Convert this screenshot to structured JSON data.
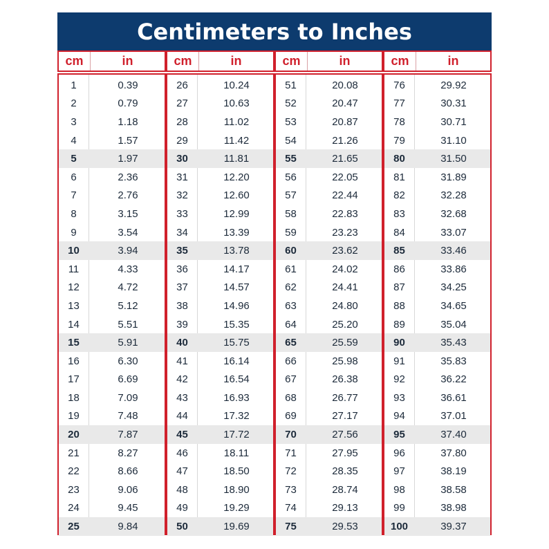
{
  "title": "Centimeters to Inches",
  "headers": {
    "cm": "cm",
    "in": "in"
  },
  "columns": [
    [
      [
        "1",
        "0.39"
      ],
      [
        "2",
        "0.79"
      ],
      [
        "3",
        "1.18"
      ],
      [
        "4",
        "1.57"
      ],
      [
        "5",
        "1.97"
      ],
      [
        "6",
        "2.36"
      ],
      [
        "7",
        "2.76"
      ],
      [
        "8",
        "3.15"
      ],
      [
        "9",
        "3.54"
      ],
      [
        "10",
        "3.94"
      ],
      [
        "11",
        "4.33"
      ],
      [
        "12",
        "4.72"
      ],
      [
        "13",
        "5.12"
      ],
      [
        "14",
        "5.51"
      ],
      [
        "15",
        "5.91"
      ],
      [
        "16",
        "6.30"
      ],
      [
        "17",
        "6.69"
      ],
      [
        "18",
        "7.09"
      ],
      [
        "19",
        "7.48"
      ],
      [
        "20",
        "7.87"
      ],
      [
        "21",
        "8.27"
      ],
      [
        "22",
        "8.66"
      ],
      [
        "23",
        "9.06"
      ],
      [
        "24",
        "9.45"
      ],
      [
        "25",
        "9.84"
      ]
    ],
    [
      [
        "26",
        "10.24"
      ],
      [
        "27",
        "10.63"
      ],
      [
        "28",
        "11.02"
      ],
      [
        "29",
        "11.42"
      ],
      [
        "30",
        "11.81"
      ],
      [
        "31",
        "12.20"
      ],
      [
        "32",
        "12.60"
      ],
      [
        "33",
        "12.99"
      ],
      [
        "34",
        "13.39"
      ],
      [
        "35",
        "13.78"
      ],
      [
        "36",
        "14.17"
      ],
      [
        "37",
        "14.57"
      ],
      [
        "38",
        "14.96"
      ],
      [
        "39",
        "15.35"
      ],
      [
        "40",
        "15.75"
      ],
      [
        "41",
        "16.14"
      ],
      [
        "42",
        "16.54"
      ],
      [
        "43",
        "16.93"
      ],
      [
        "44",
        "17.32"
      ],
      [
        "45",
        "17.72"
      ],
      [
        "46",
        "18.11"
      ],
      [
        "47",
        "18.50"
      ],
      [
        "48",
        "18.90"
      ],
      [
        "49",
        "19.29"
      ],
      [
        "50",
        "19.69"
      ]
    ],
    [
      [
        "51",
        "20.08"
      ],
      [
        "52",
        "20.47"
      ],
      [
        "53",
        "20.87"
      ],
      [
        "54",
        "21.26"
      ],
      [
        "55",
        "21.65"
      ],
      [
        "56",
        "22.05"
      ],
      [
        "57",
        "22.44"
      ],
      [
        "58",
        "22.83"
      ],
      [
        "59",
        "23.23"
      ],
      [
        "60",
        "23.62"
      ],
      [
        "61",
        "24.02"
      ],
      [
        "62",
        "24.41"
      ],
      [
        "63",
        "24.80"
      ],
      [
        "64",
        "25.20"
      ],
      [
        "65",
        "25.59"
      ],
      [
        "66",
        "25.98"
      ],
      [
        "67",
        "26.38"
      ],
      [
        "68",
        "26.77"
      ],
      [
        "69",
        "27.17"
      ],
      [
        "70",
        "27.56"
      ],
      [
        "71",
        "27.95"
      ],
      [
        "72",
        "28.35"
      ],
      [
        "73",
        "28.74"
      ],
      [
        "74",
        "29.13"
      ],
      [
        "75",
        "29.53"
      ]
    ],
    [
      [
        "76",
        "29.92"
      ],
      [
        "77",
        "30.31"
      ],
      [
        "78",
        "30.71"
      ],
      [
        "79",
        "31.10"
      ],
      [
        "80",
        "31.50"
      ],
      [
        "81",
        "31.89"
      ],
      [
        "82",
        "32.28"
      ],
      [
        "83",
        "32.68"
      ],
      [
        "84",
        "33.07"
      ],
      [
        "85",
        "33.46"
      ],
      [
        "86",
        "33.86"
      ],
      [
        "87",
        "34.25"
      ],
      [
        "88",
        "34.65"
      ],
      [
        "89",
        "35.04"
      ],
      [
        "90",
        "35.43"
      ],
      [
        "91",
        "35.83"
      ],
      [
        "92",
        "36.22"
      ],
      [
        "93",
        "36.61"
      ],
      [
        "94",
        "37.01"
      ],
      [
        "95",
        "37.40"
      ],
      [
        "96",
        "37.80"
      ],
      [
        "97",
        "38.19"
      ],
      [
        "98",
        "38.58"
      ],
      [
        "99",
        "38.98"
      ],
      [
        "100",
        "39.37"
      ]
    ]
  ],
  "highlight_every": 5,
  "colors": {
    "title_bg": "#0d3b6e",
    "accent_red": "#d0202c",
    "highlight_row": "#e9e9e9"
  }
}
